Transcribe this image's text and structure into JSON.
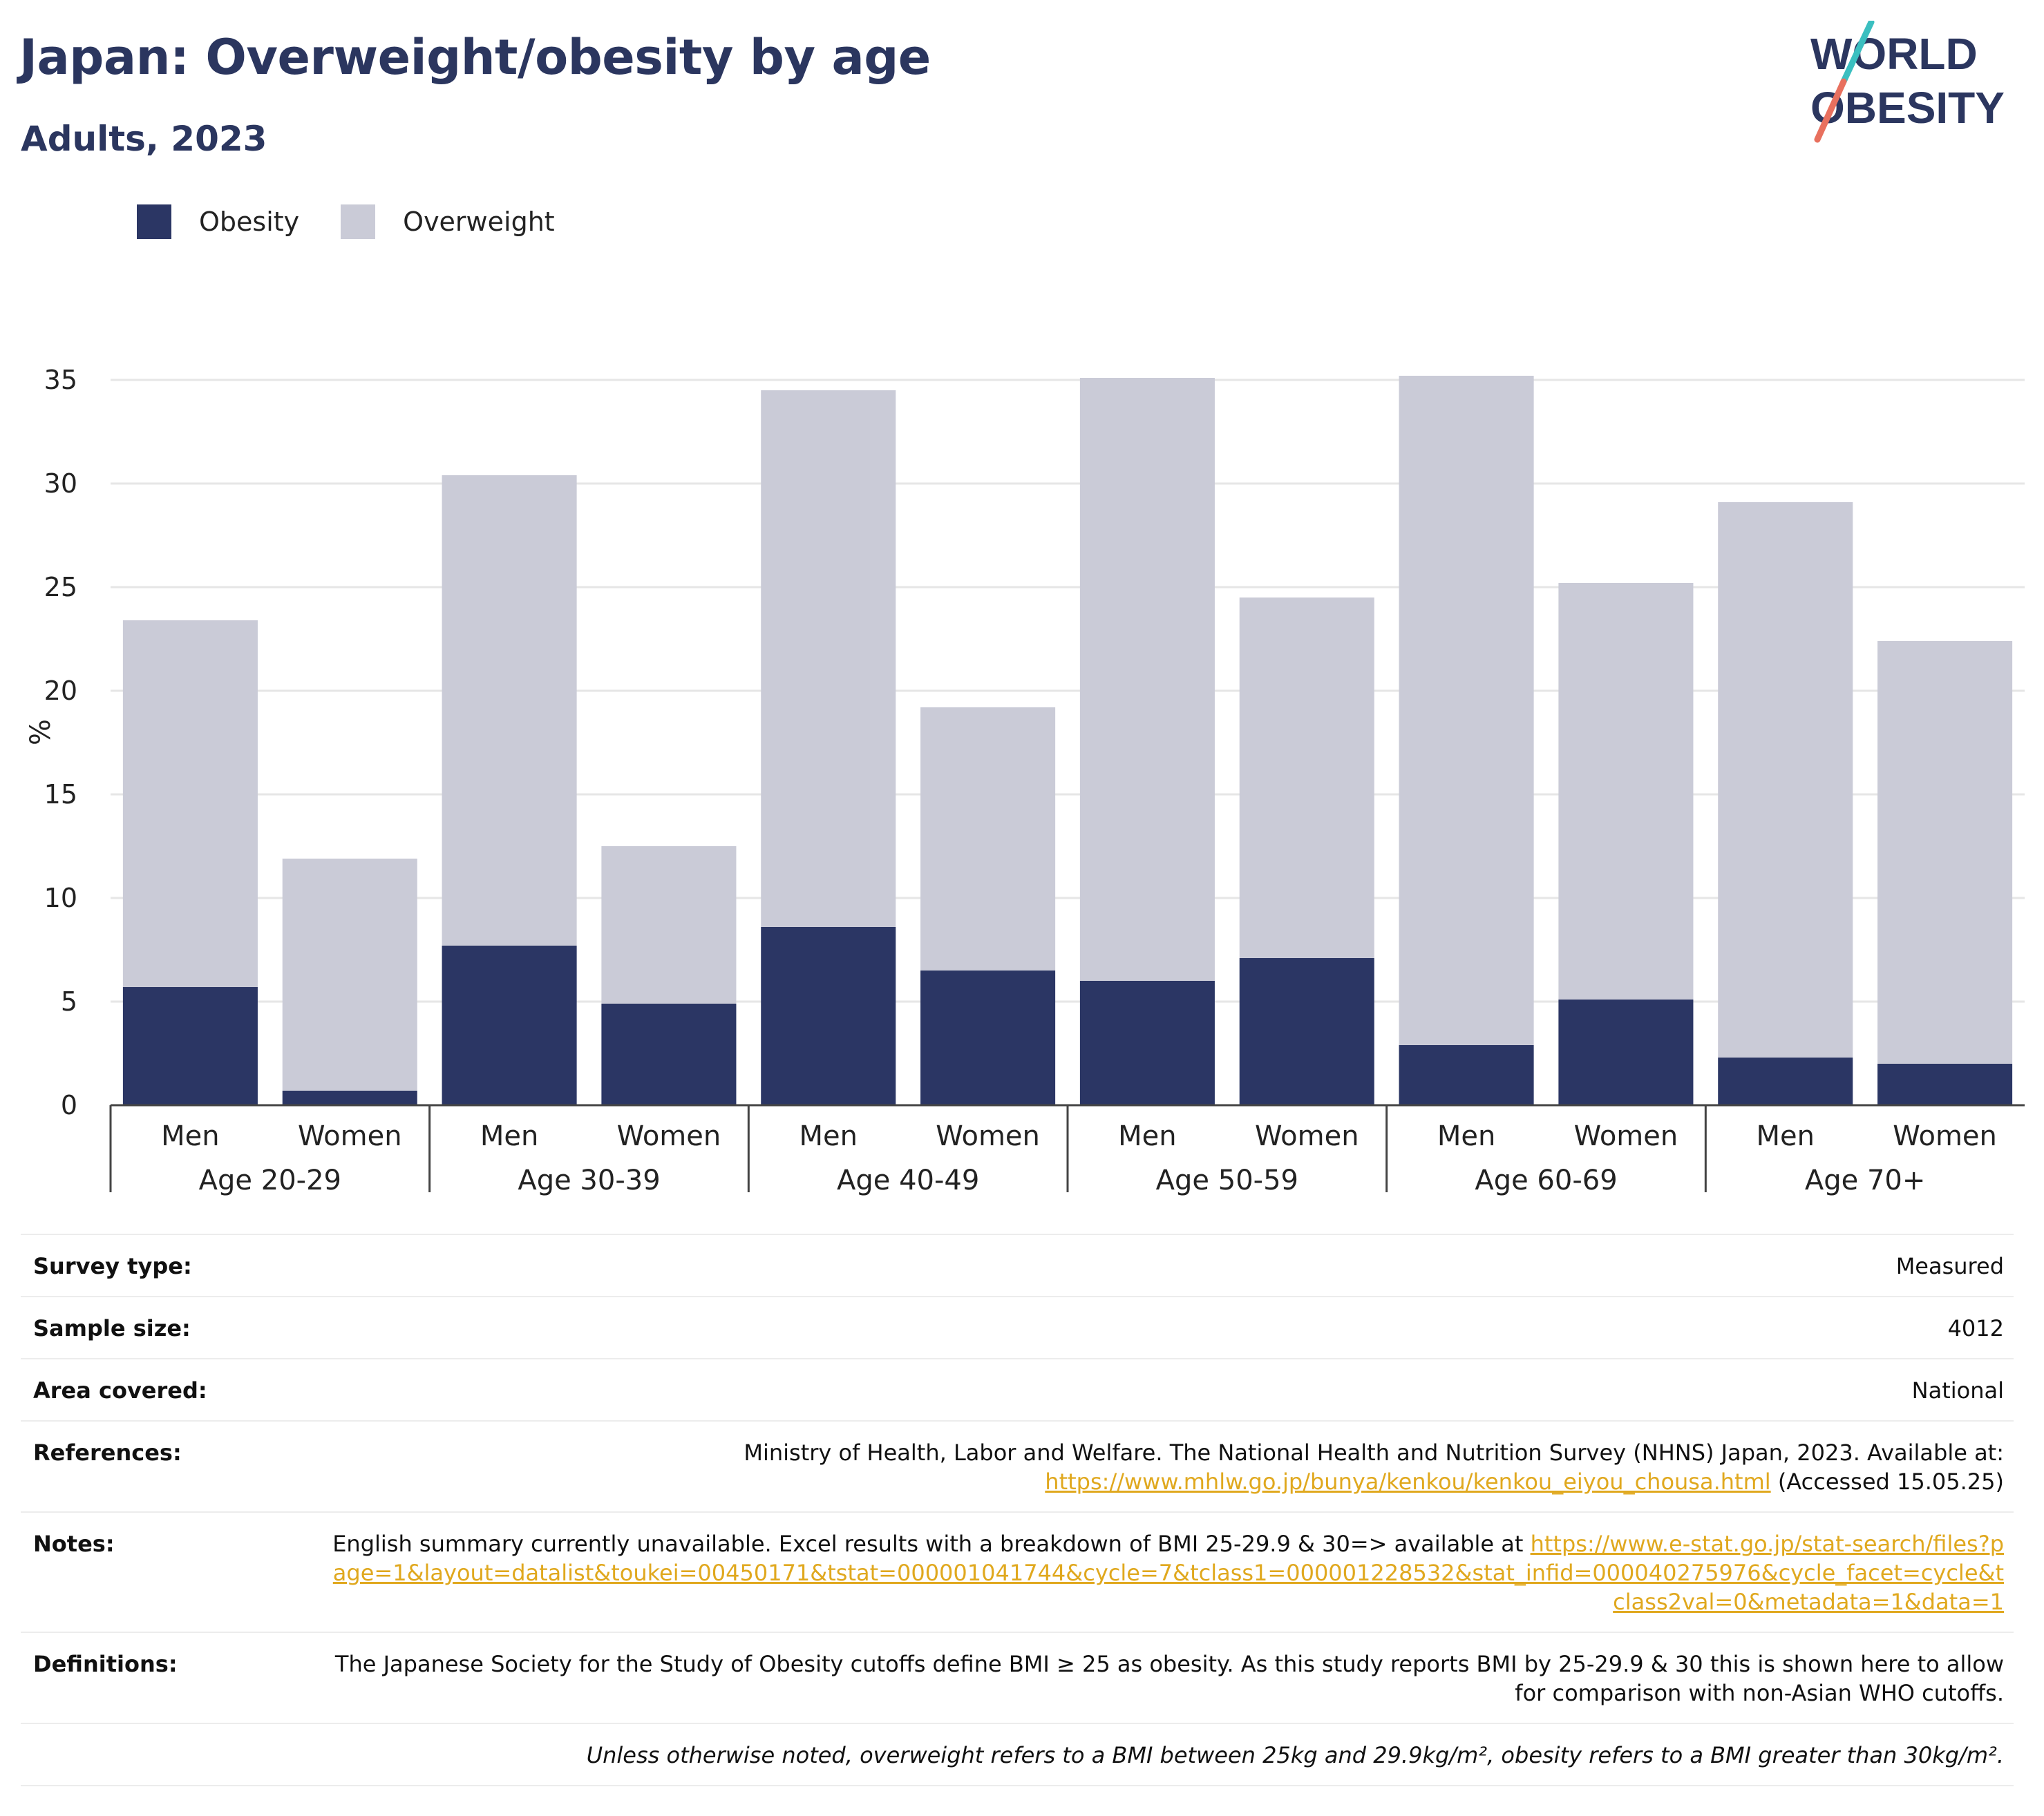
{
  "title": "Japan: Overweight/obesity by age",
  "subtitle": "Adults, 2023",
  "logo": {
    "line1": "WORLD",
    "line2": "OBESITY"
  },
  "legend": {
    "obesity": "Obesity",
    "overweight": "Overweight"
  },
  "colors": {
    "obesity": "#2b3664",
    "overweight": "#cacbd7",
    "link": "#e0a81e",
    "grid": "#e6e6e6"
  },
  "chart_data": {
    "type": "bar",
    "stacked": true,
    "ylabel": "%",
    "ylim": [
      0,
      35
    ],
    "yticks": [
      0,
      5,
      10,
      15,
      20,
      25,
      30,
      35
    ],
    "groups": [
      "Age 20-29",
      "Age 30-39",
      "Age 40-49",
      "Age 50-59",
      "Age 60-69",
      "Age 70+"
    ],
    "categories": [
      "Men",
      "Women",
      "Men",
      "Women",
      "Men",
      "Women",
      "Men",
      "Women",
      "Men",
      "Women",
      "Men",
      "Women"
    ],
    "series": [
      {
        "name": "Obesity",
        "values": [
          5.7,
          0.7,
          7.7,
          4.9,
          8.6,
          6.5,
          6.0,
          7.1,
          2.9,
          5.1,
          2.3,
          2.0
        ]
      },
      {
        "name": "Overweight",
        "values": [
          17.7,
          11.2,
          22.7,
          7.6,
          25.9,
          12.7,
          29.1,
          17.4,
          32.3,
          20.1,
          26.8,
          20.4
        ]
      }
    ],
    "grid": true,
    "legend_position": "top-left"
  },
  "info": {
    "survey_type": {
      "label": "Survey type:",
      "value": "Measured"
    },
    "sample_size": {
      "label": "Sample size:",
      "value": "4012"
    },
    "area": {
      "label": "Area covered:",
      "value": "National"
    },
    "references": {
      "label": "References:",
      "text": "Ministry of Health, Labor and Welfare. The National Health and Nutrition Survey (NHNS) Japan, 2023. Available at:",
      "link": "https://www.mhlw.go.jp/bunya/kenkou/kenkou_eiyou_chousa.html",
      "suffix": "(Accessed 15.05.25)"
    },
    "notes": {
      "label": "Notes:",
      "text": "English summary currently unavailable. Excel results with a breakdown of BMI 25-29.9 & 30=> available at",
      "link": "https://www.e-stat.go.jp/stat-search/files?page=1&layout=datalist&toukei=00450171&tstat=000001041744&cycle=7&tclass1=000001228532&stat_infid=000040275976&cycle_facet=cycle&tclass2val=0&metadata=1&data=1"
    },
    "definitions": {
      "label": "Definitions:",
      "value": "The Japanese Society for the Study of Obesity cutoffs define BMI ≥ 25 as obesity. As this study reports BMI by 25-29.9 & 30 this is shown here to allow for comparison with non-Asian WHO cutoffs."
    },
    "footnote": "Unless otherwise noted, overweight refers to a BMI between 25kg and 29.9kg/m², obesity refers to a BMI greater than 30kg/m²."
  }
}
